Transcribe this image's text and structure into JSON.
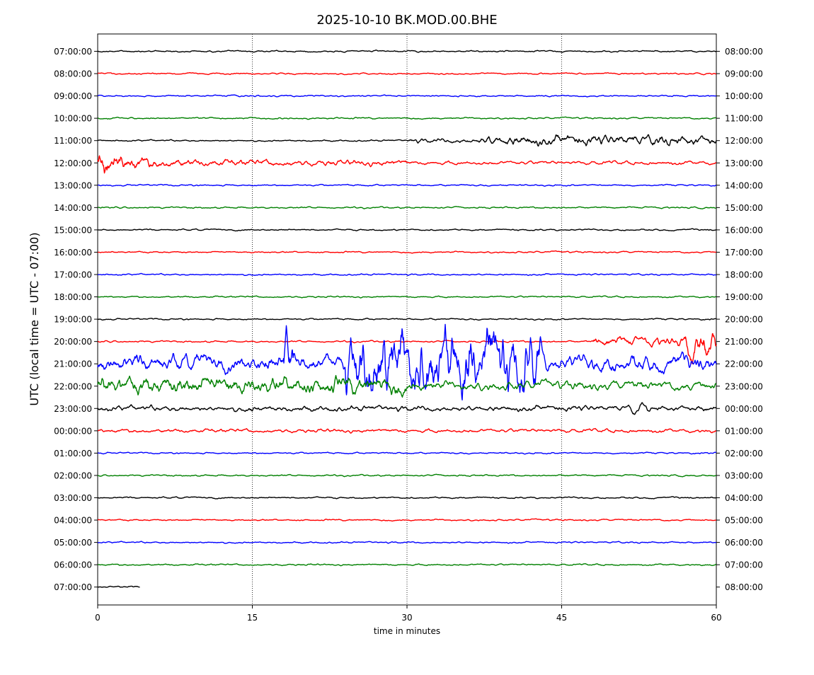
{
  "chart_data": {
    "type": "line",
    "title": "2025-10-10 BK.MOD.00.BHE",
    "xlabel": "time in minutes",
    "ylabel": "UTC (local time = UTC - 07:00)",
    "xlim": [
      0,
      60
    ],
    "x_ticks": [
      "0",
      "15",
      "30",
      "45",
      "60"
    ],
    "x_tick_values": [
      0,
      15,
      30,
      45,
      60
    ],
    "vertical_grid_minutes": [
      15,
      30,
      45
    ],
    "grid": "vertical dotted lines at 15, 30, 45",
    "trace_colors": [
      "#000000",
      "#ff0000",
      "#0000ff",
      "#008000"
    ],
    "left_labels": [
      "07:00:00",
      "08:00:00",
      "09:00:00",
      "10:00:00",
      "11:00:00",
      "12:00:00",
      "13:00:00",
      "14:00:00",
      "15:00:00",
      "16:00:00",
      "17:00:00",
      "18:00:00",
      "19:00:00",
      "20:00:00",
      "21:00:00",
      "22:00:00",
      "23:00:00",
      "00:00:00",
      "01:00:00",
      "02:00:00",
      "03:00:00",
      "04:00:00",
      "05:00:00",
      "06:00:00",
      "07:00:00"
    ],
    "right_labels": [
      "08:00:00",
      "09:00:00",
      "10:00:00",
      "11:00:00",
      "12:00:00",
      "13:00:00",
      "14:00:00",
      "15:00:00",
      "16:00:00",
      "17:00:00",
      "18:00:00",
      "19:00:00",
      "20:00:00",
      "21:00:00",
      "22:00:00",
      "23:00:00",
      "00:00:00",
      "01:00:00",
      "02:00:00",
      "03:00:00",
      "04:00:00",
      "05:00:00",
      "06:00:00",
      "07:00:00",
      "08:00:00"
    ],
    "trace_end_minute_last_row": 4.1
  }
}
